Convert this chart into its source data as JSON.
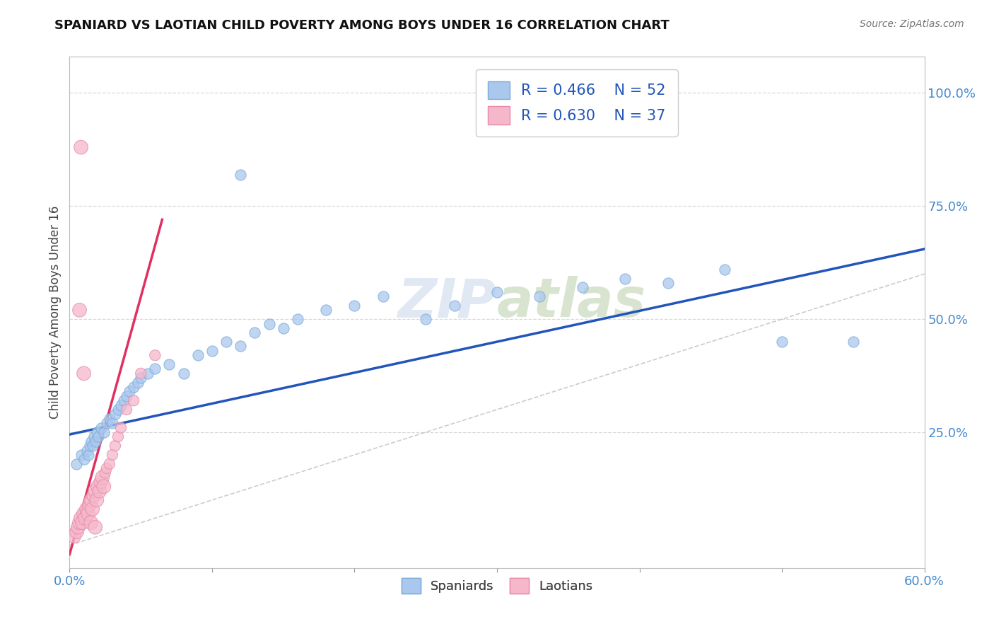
{
  "title": "SPANIARD VS LAOTIAN CHILD POVERTY AMONG BOYS UNDER 16 CORRELATION CHART",
  "source": "Source: ZipAtlas.com",
  "ylabel": "Child Poverty Among Boys Under 16",
  "ytick_labels": [
    "100.0%",
    "75.0%",
    "50.0%",
    "25.0%"
  ],
  "ytick_values": [
    1.0,
    0.75,
    0.5,
    0.25
  ],
  "xlim": [
    0.0,
    0.6
  ],
  "ylim": [
    -0.05,
    1.08
  ],
  "watermark_zip": "ZIP",
  "watermark_atlas": "atlas",
  "legend_r_spaniard": "R = 0.466",
  "legend_n_spaniard": "N = 52",
  "legend_r_laotian": "R = 0.630",
  "legend_n_laotian": "N = 37",
  "spaniard_fill": "#aac8ee",
  "laotian_fill": "#f5b8cb",
  "spaniard_edge": "#7aaad8",
  "laotian_edge": "#e888a8",
  "spaniard_line_color": "#2255bb",
  "laotian_line_color": "#e03060",
  "ref_line_color": "#cccccc",
  "grid_color": "#d8d8d8",
  "background_color": "#ffffff",
  "spaniard_points": [
    [
      0.005,
      0.18
    ],
    [
      0.008,
      0.2
    ],
    [
      0.01,
      0.19
    ],
    [
      0.012,
      0.21
    ],
    [
      0.013,
      0.2
    ],
    [
      0.014,
      0.22
    ],
    [
      0.015,
      0.23
    ],
    [
      0.016,
      0.22
    ],
    [
      0.017,
      0.24
    ],
    [
      0.018,
      0.23
    ],
    [
      0.019,
      0.25
    ],
    [
      0.02,
      0.24
    ],
    [
      0.022,
      0.26
    ],
    [
      0.024,
      0.25
    ],
    [
      0.026,
      0.27
    ],
    [
      0.028,
      0.28
    ],
    [
      0.03,
      0.27
    ],
    [
      0.032,
      0.29
    ],
    [
      0.034,
      0.3
    ],
    [
      0.036,
      0.31
    ],
    [
      0.038,
      0.32
    ],
    [
      0.04,
      0.33
    ],
    [
      0.042,
      0.34
    ],
    [
      0.045,
      0.35
    ],
    [
      0.048,
      0.36
    ],
    [
      0.05,
      0.37
    ],
    [
      0.055,
      0.38
    ],
    [
      0.06,
      0.39
    ],
    [
      0.07,
      0.4
    ],
    [
      0.08,
      0.38
    ],
    [
      0.09,
      0.42
    ],
    [
      0.1,
      0.43
    ],
    [
      0.11,
      0.45
    ],
    [
      0.12,
      0.44
    ],
    [
      0.13,
      0.47
    ],
    [
      0.14,
      0.49
    ],
    [
      0.15,
      0.48
    ],
    [
      0.16,
      0.5
    ],
    [
      0.18,
      0.52
    ],
    [
      0.2,
      0.53
    ],
    [
      0.22,
      0.55
    ],
    [
      0.25,
      0.5
    ],
    [
      0.27,
      0.53
    ],
    [
      0.3,
      0.56
    ],
    [
      0.33,
      0.55
    ],
    [
      0.36,
      0.57
    ],
    [
      0.39,
      0.59
    ],
    [
      0.42,
      0.58
    ],
    [
      0.46,
      0.61
    ],
    [
      0.5,
      0.45
    ],
    [
      0.12,
      0.82
    ],
    [
      0.55,
      0.45
    ]
  ],
  "laotian_points": [
    [
      0.003,
      0.02
    ],
    [
      0.005,
      0.03
    ],
    [
      0.006,
      0.04
    ],
    [
      0.007,
      0.05
    ],
    [
      0.008,
      0.06
    ],
    [
      0.009,
      0.05
    ],
    [
      0.01,
      0.07
    ],
    [
      0.011,
      0.06
    ],
    [
      0.012,
      0.08
    ],
    [
      0.013,
      0.07
    ],
    [
      0.014,
      0.09
    ],
    [
      0.015,
      0.1
    ],
    [
      0.016,
      0.08
    ],
    [
      0.017,
      0.11
    ],
    [
      0.018,
      0.12
    ],
    [
      0.019,
      0.1
    ],
    [
      0.02,
      0.13
    ],
    [
      0.021,
      0.12
    ],
    [
      0.022,
      0.14
    ],
    [
      0.023,
      0.15
    ],
    [
      0.024,
      0.13
    ],
    [
      0.025,
      0.16
    ],
    [
      0.026,
      0.17
    ],
    [
      0.028,
      0.18
    ],
    [
      0.03,
      0.2
    ],
    [
      0.032,
      0.22
    ],
    [
      0.034,
      0.24
    ],
    [
      0.036,
      0.26
    ],
    [
      0.04,
      0.3
    ],
    [
      0.045,
      0.32
    ],
    [
      0.05,
      0.38
    ],
    [
      0.06,
      0.42
    ],
    [
      0.007,
      0.52
    ],
    [
      0.01,
      0.38
    ],
    [
      0.015,
      0.05
    ],
    [
      0.018,
      0.04
    ],
    [
      0.008,
      0.88
    ]
  ],
  "spaniard_line_x": [
    0.0,
    0.6
  ],
  "spaniard_line_y": [
    0.245,
    0.655
  ],
  "laotian_line_x": [
    0.0,
    0.065
  ],
  "laotian_line_y": [
    -0.02,
    0.72
  ]
}
